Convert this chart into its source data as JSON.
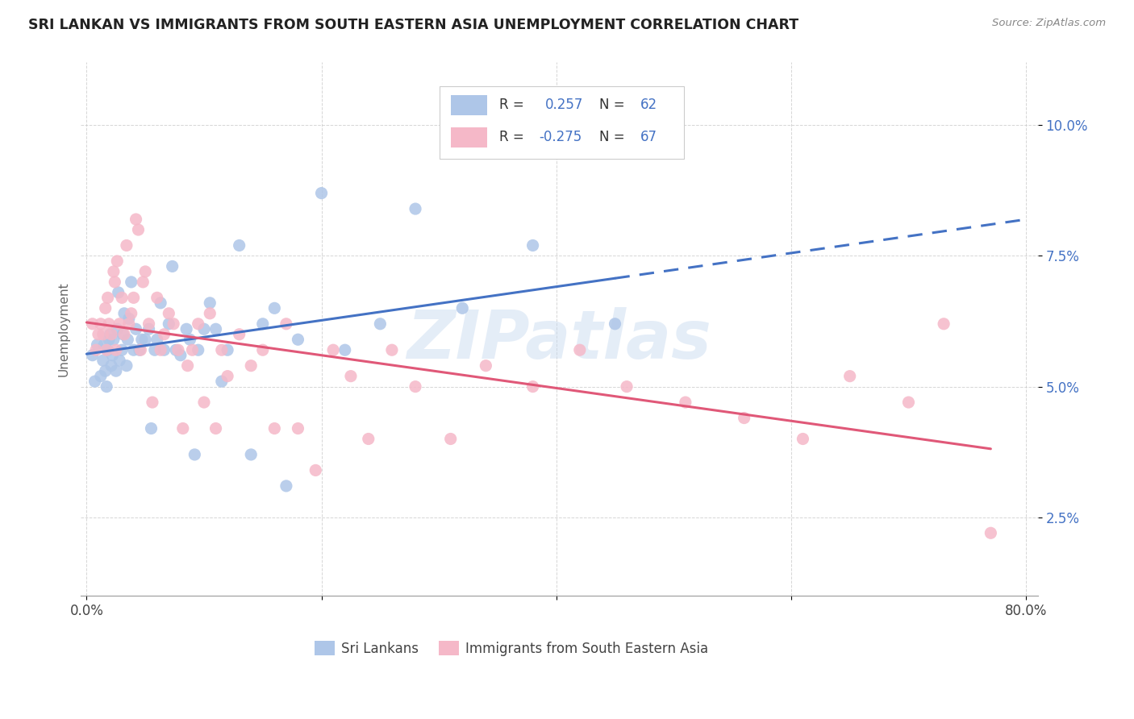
{
  "title": "SRI LANKAN VS IMMIGRANTS FROM SOUTH EASTERN ASIA UNEMPLOYMENT CORRELATION CHART",
  "source": "Source: ZipAtlas.com",
  "ylabel": "Unemployment",
  "yticks": [
    0.025,
    0.05,
    0.075,
    0.1
  ],
  "ytick_labels": [
    "2.5%",
    "5.0%",
    "7.5%",
    "10.0%"
  ],
  "watermark": "ZIPatlas",
  "series1_color": "#aec6e8",
  "series2_color": "#f5b8c8",
  "trendline1_color": "#4472c4",
  "trendline2_color": "#e05878",
  "background_color": "#ffffff",
  "series1_name": "Sri Lankans",
  "series2_name": "Immigrants from South Eastern Asia",
  "r1": "0.257",
  "n1": "62",
  "r2": "-0.275",
  "n2": "67",
  "series1_x": [
    0.005,
    0.007,
    0.009,
    0.012,
    0.014,
    0.015,
    0.016,
    0.017,
    0.018,
    0.019,
    0.02,
    0.021,
    0.022,
    0.023,
    0.025,
    0.026,
    0.027,
    0.028,
    0.03,
    0.031,
    0.032,
    0.034,
    0.035,
    0.036,
    0.038,
    0.04,
    0.042,
    0.045,
    0.047,
    0.05,
    0.053,
    0.055,
    0.058,
    0.06,
    0.063,
    0.066,
    0.07,
    0.073,
    0.076,
    0.08,
    0.085,
    0.088,
    0.092,
    0.095,
    0.1,
    0.105,
    0.11,
    0.115,
    0.12,
    0.13,
    0.14,
    0.15,
    0.16,
    0.17,
    0.18,
    0.2,
    0.22,
    0.25,
    0.28,
    0.32,
    0.38,
    0.45
  ],
  "series1_y": [
    0.056,
    0.051,
    0.058,
    0.052,
    0.055,
    0.058,
    0.053,
    0.05,
    0.057,
    0.059,
    0.06,
    0.054,
    0.056,
    0.059,
    0.053,
    0.061,
    0.068,
    0.055,
    0.057,
    0.06,
    0.064,
    0.054,
    0.059,
    0.063,
    0.07,
    0.057,
    0.061,
    0.057,
    0.059,
    0.059,
    0.061,
    0.042,
    0.057,
    0.059,
    0.066,
    0.057,
    0.062,
    0.073,
    0.057,
    0.056,
    0.061,
    0.059,
    0.037,
    0.057,
    0.061,
    0.066,
    0.061,
    0.051,
    0.057,
    0.077,
    0.037,
    0.062,
    0.065,
    0.031,
    0.059,
    0.087,
    0.057,
    0.062,
    0.084,
    0.065,
    0.077,
    0.062
  ],
  "series2_x": [
    0.005,
    0.008,
    0.01,
    0.012,
    0.014,
    0.016,
    0.017,
    0.018,
    0.019,
    0.021,
    0.023,
    0.024,
    0.025,
    0.026,
    0.028,
    0.03,
    0.032,
    0.034,
    0.036,
    0.038,
    0.04,
    0.042,
    0.044,
    0.046,
    0.048,
    0.05,
    0.053,
    0.056,
    0.06,
    0.063,
    0.066,
    0.07,
    0.074,
    0.078,
    0.082,
    0.086,
    0.09,
    0.095,
    0.1,
    0.105,
    0.11,
    0.115,
    0.12,
    0.13,
    0.14,
    0.15,
    0.16,
    0.17,
    0.18,
    0.195,
    0.21,
    0.225,
    0.24,
    0.26,
    0.28,
    0.31,
    0.34,
    0.38,
    0.42,
    0.46,
    0.51,
    0.56,
    0.61,
    0.65,
    0.7,
    0.73,
    0.77
  ],
  "series2_y": [
    0.062,
    0.057,
    0.06,
    0.062,
    0.06,
    0.065,
    0.057,
    0.067,
    0.062,
    0.06,
    0.072,
    0.07,
    0.057,
    0.074,
    0.062,
    0.067,
    0.06,
    0.077,
    0.062,
    0.064,
    0.067,
    0.082,
    0.08,
    0.057,
    0.07,
    0.072,
    0.062,
    0.047,
    0.067,
    0.057,
    0.06,
    0.064,
    0.062,
    0.057,
    0.042,
    0.054,
    0.057,
    0.062,
    0.047,
    0.064,
    0.042,
    0.057,
    0.052,
    0.06,
    0.054,
    0.057,
    0.042,
    0.062,
    0.042,
    0.034,
    0.057,
    0.052,
    0.04,
    0.057,
    0.05,
    0.04,
    0.054,
    0.05,
    0.057,
    0.05,
    0.047,
    0.044,
    0.04,
    0.052,
    0.047,
    0.062,
    0.022
  ]
}
